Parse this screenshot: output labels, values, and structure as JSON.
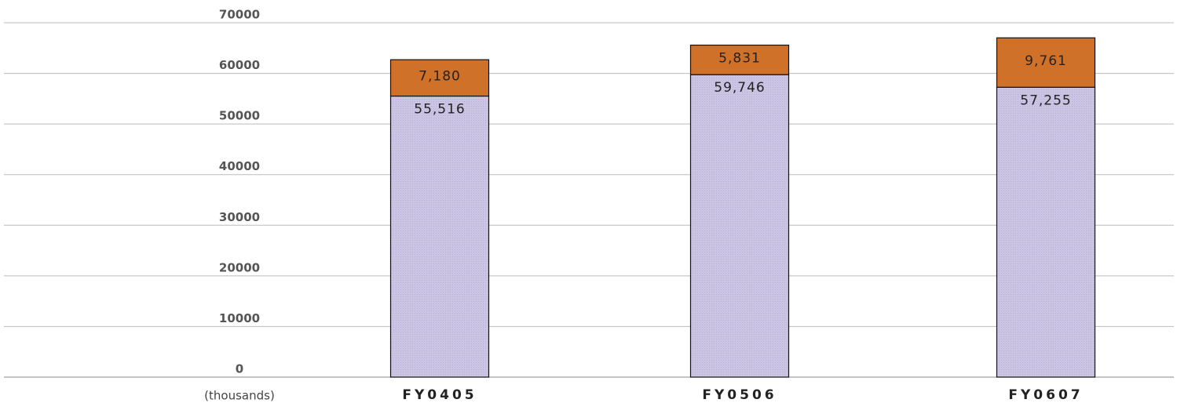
{
  "chart_data": {
    "type": "stacked_bar",
    "y_label": "(thousands)",
    "categories": [
      "FY0405",
      "FY0506",
      "FY0607"
    ],
    "series": [
      {
        "color": "#cbc4e3",
        "values": [
          55516,
          59746,
          57255
        ],
        "value_labels": [
          "55,516",
          "59,746",
          "57,255"
        ]
      },
      {
        "color": "#d0712a",
        "values": [
          7180,
          5831,
          9761
        ],
        "value_labels": [
          "7,180",
          "5,831",
          "9,761"
        ]
      }
    ],
    "ylim": [
      0,
      70000
    ],
    "yticks": [
      0,
      10000,
      20000,
      30000,
      40000,
      50000,
      60000,
      70000
    ],
    "grid": true
  }
}
